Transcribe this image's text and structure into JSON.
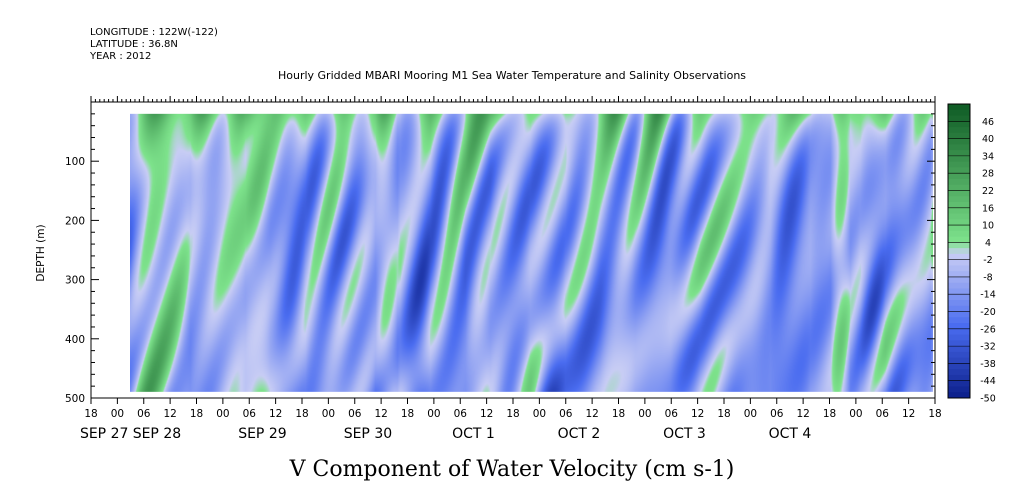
{
  "header": {
    "longitude": "LONGITUDE : 122W(-122)",
    "latitude": "LATITUDE : 36.8N",
    "year": "YEAR : 2012"
  },
  "chart_data": {
    "type": "heatmap",
    "title": "Hourly Gridded MBARI Mooring M1 Sea Water Temperature and Salinity Observations",
    "xlabel": "V Component of Water Velocity (cm s-1)",
    "ylabel": "DEPTH (m)",
    "yticks": [
      100,
      200,
      300,
      400,
      500
    ],
    "ylim": [
      500,
      0
    ],
    "data_depth_range": [
      20,
      490
    ],
    "x_hour_ticks": [
      "18",
      "00",
      "06",
      "12",
      "18",
      "00",
      "06",
      "12",
      "18",
      "00",
      "06",
      "12",
      "18",
      "00",
      "06",
      "12",
      "18",
      "00",
      "06",
      "12",
      "18",
      "00",
      "06",
      "12",
      "18",
      "00",
      "06",
      "12",
      "18",
      "00",
      "06",
      "12",
      "18"
    ],
    "date_labels": [
      "SEP 27",
      "SEP 28",
      "SEP 29",
      "SEP 30",
      "OCT  1",
      "OCT  2",
      "OCT  3",
      "OCT  4"
    ],
    "colorbar_labels": [
      "46",
      "40",
      "34",
      "28",
      "22",
      "16",
      "10",
      "4",
      "-2",
      "-8",
      "-14",
      "-20",
      "-26",
      "-32",
      "-38",
      "-44",
      "-50"
    ],
    "colorbar_range": [
      -50,
      52
    ],
    "color_scale": {
      "negative_max": "#0b1f8a",
      "mid_negative": "#4a6cf0",
      "zero": "#c8cdf4",
      "positive": "#7ee38c",
      "positive_max": "#0e5a24"
    }
  }
}
